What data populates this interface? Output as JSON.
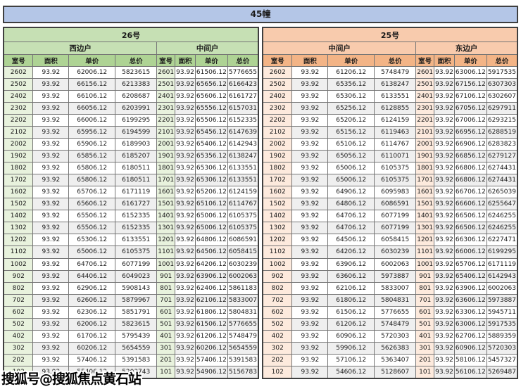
{
  "title": "45幢",
  "watermark": {
    "text": "搜狐号@搜狐焦点黄石站"
  },
  "columns": [
    "室号",
    "面积",
    "单价",
    "总价"
  ],
  "colors": {
    "banner_bg": "#b4c6e7",
    "green": {
      "sec_bg": "#c6e0b4",
      "hdr_bg": "#aed394",
      "room_bg": "#e8f2dd"
    },
    "orange": {
      "sec_bg": "#f8cbad",
      "hdr_bg": "#f3b486",
      "room_bg": "#fdeadd"
    }
  },
  "sections": [
    {
      "label": "26号",
      "theme": "green",
      "groups": [
        {
          "label": "西边户",
          "rows": [
            [
              "2602",
              "93.92",
              "62006.12",
              "5823615"
            ],
            [
              "2502",
              "93.92",
              "66156.12",
              "6213383"
            ],
            [
              "2402",
              "93.92",
              "66106.12",
              "6208687"
            ],
            [
              "2302",
              "93.92",
              "66056.12",
              "6203991"
            ],
            [
              "2202",
              "93.92",
              "66006.12",
              "6199295"
            ],
            [
              "2102",
              "93.92",
              "65956.12",
              "6194599"
            ],
            [
              "2002",
              "93.92",
              "65906.12",
              "6189903"
            ],
            [
              "1902",
              "93.92",
              "65856.12",
              "6185207"
            ],
            [
              "1802",
              "93.92",
              "65806.12",
              "6180511"
            ],
            [
              "1702",
              "93.92",
              "65806.12",
              "6180511"
            ],
            [
              "1602",
              "93.92",
              "65706.12",
              "6171119"
            ],
            [
              "1502",
              "93.92",
              "65606.12",
              "6161727"
            ],
            [
              "1402",
              "93.92",
              "65506.12",
              "6152335"
            ],
            [
              "1302",
              "93.92",
              "65506.12",
              "6152335"
            ],
            [
              "1202",
              "93.92",
              "65306.12",
              "6133551"
            ],
            [
              "1102",
              "93.92",
              "65006.12",
              "6105375"
            ],
            [
              "1002",
              "93.92",
              "64706.12",
              "6077199"
            ],
            [
              "902",
              "93.92",
              "64406.12",
              "6049023"
            ],
            [
              "802",
              "93.92",
              "62906.12",
              "5908143"
            ],
            [
              "702",
              "93.92",
              "62606.12",
              "5879967"
            ],
            [
              "602",
              "93.92",
              "62306.12",
              "5851791"
            ],
            [
              "502",
              "93.92",
              "62006.12",
              "5823615"
            ],
            [
              "402",
              "93.92",
              "61706.12",
              "5795439"
            ],
            [
              "302",
              "93.92",
              "60206.12",
              "5654559"
            ],
            [
              "202",
              "93.92",
              "57406.12",
              "5391583"
            ],
            [
              "102",
              "93.92",
              "55406.12",
              "5203743"
            ]
          ]
        },
        {
          "label": "中间户",
          "rows": [
            [
              "2601",
              "93.92",
              "61506.12",
              "5776655"
            ],
            [
              "2501",
              "93.92",
              "65656.12",
              "6166423"
            ],
            [
              "2401",
              "93.92",
              "65606.12",
              "6161727"
            ],
            [
              "2301",
              "93.92",
              "65556.12",
              "6157031"
            ],
            [
              "2201",
              "93.92",
              "65506.12",
              "6152335"
            ],
            [
              "2101",
              "93.92",
              "65456.12",
              "6147639"
            ],
            [
              "2001",
              "93.92",
              "65406.12",
              "6142943"
            ],
            [
              "1901",
              "93.92",
              "65356.12",
              "6138247"
            ],
            [
              "1801",
              "93.92",
              "65306.12",
              "6133551"
            ],
            [
              "1701",
              "93.92",
              "65306.12",
              "6133551"
            ],
            [
              "1601",
              "93.92",
              "65206.12",
              "6124159"
            ],
            [
              "1501",
              "93.92",
              "65106.12",
              "6114767"
            ],
            [
              "1401",
              "93.92",
              "65006.12",
              "6105375"
            ],
            [
              "1301",
              "93.92",
              "65006.12",
              "6105375"
            ],
            [
              "1201",
              "93.92",
              "64806.12",
              "6086591"
            ],
            [
              "1101",
              "93.92",
              "64506.12",
              "6058415"
            ],
            [
              "1001",
              "93.92",
              "64206.12",
              "6030239"
            ],
            [
              "901",
              "93.92",
              "63906.12",
              "6002063"
            ],
            [
              "801",
              "93.92",
              "62406.12",
              "5861183"
            ],
            [
              "701",
              "93.92",
              "62106.12",
              "5833007"
            ],
            [
              "601",
              "93.92",
              "61806.12",
              "5804831"
            ],
            [
              "501",
              "93.92",
              "61506.12",
              "5776655"
            ],
            [
              "401",
              "93.92",
              "61206.12",
              "5748479"
            ],
            [
              "301",
              "93.92",
              "60206.12",
              "5654559"
            ],
            [
              "201",
              "93.92",
              "57406.12",
              "5391583"
            ],
            [
              "101",
              "93.92",
              "54906.12",
              "5156783"
            ]
          ]
        }
      ]
    },
    {
      "label": "25号",
      "theme": "orange",
      "groups": [
        {
          "label": "中间户",
          "rows": [
            [
              "2602",
              "93.92",
              "61206.12",
              "5748479"
            ],
            [
              "2502",
              "93.92",
              "65356.12",
              "6138247"
            ],
            [
              "2402",
              "93.92",
              "65306.12",
              "6133551"
            ],
            [
              "2302",
              "93.92",
              "65256.12",
              "6128855"
            ],
            [
              "2202",
              "93.92",
              "65206.12",
              "6124159"
            ],
            [
              "2102",
              "93.92",
              "65156.12",
              "6119463"
            ],
            [
              "2002",
              "93.92",
              "65106.12",
              "6114767"
            ],
            [
              "1902",
              "93.92",
              "65056.12",
              "6110071"
            ],
            [
              "1802",
              "93.92",
              "65006.12",
              "6105375"
            ],
            [
              "1702",
              "93.92",
              "65006.12",
              "6105375"
            ],
            [
              "1602",
              "93.92",
              "64906.12",
              "6095983"
            ],
            [
              "1502",
              "93.92",
              "64806.12",
              "6086591"
            ],
            [
              "1402",
              "93.92",
              "64706.12",
              "6077199"
            ],
            [
              "1302",
              "93.92",
              "64706.12",
              "6077199"
            ],
            [
              "1202",
              "93.92",
              "64506.12",
              "6058415"
            ],
            [
              "1102",
              "93.92",
              "64206.12",
              "6030239"
            ],
            [
              "1002",
              "93.92",
              "63906.12",
              "6002063"
            ],
            [
              "902",
              "93.92",
              "63606.12",
              "5973887"
            ],
            [
              "802",
              "93.92",
              "62106.12",
              "5833007"
            ],
            [
              "702",
              "93.92",
              "61806.12",
              "5804831"
            ],
            [
              "602",
              "93.92",
              "61506.12",
              "5776655"
            ],
            [
              "502",
              "93.92",
              "61206.12",
              "5748479"
            ],
            [
              "402",
              "93.92",
              "60906.12",
              "5720303"
            ],
            [
              "302",
              "93.92",
              "59906.12",
              "5626383"
            ],
            [
              "202",
              "93.92",
              "57106.12",
              "5363407"
            ],
            [
              "102",
              "93.92",
              "54606.12",
              "5128607"
            ]
          ]
        },
        {
          "label": "东边户",
          "rows": [
            [
              "2601",
              "93.92",
              "63006.12",
              "5917535"
            ],
            [
              "2501",
              "93.92",
              "67156.12",
              "6307303"
            ],
            [
              "2401",
              "93.92",
              "67106.12",
              "6302607"
            ],
            [
              "2301",
              "93.92",
              "67056.12",
              "6297911"
            ],
            [
              "2201",
              "93.92",
              "67006.12",
              "6293215"
            ],
            [
              "2101",
              "93.92",
              "66956.12",
              "6288519"
            ],
            [
              "2001",
              "93.92",
              "66906.12",
              "6283823"
            ],
            [
              "1901",
              "93.92",
              "66856.12",
              "6279127"
            ],
            [
              "1801",
              "93.92",
              "66806.12",
              "6274431"
            ],
            [
              "1701",
              "93.92",
              "66806.12",
              "6274431"
            ],
            [
              "1601",
              "93.92",
              "66706.12",
              "6265039"
            ],
            [
              "1501",
              "93.92",
              "66606.12",
              "6255647"
            ],
            [
              "1401",
              "93.92",
              "66506.12",
              "6246255"
            ],
            [
              "1301",
              "93.92",
              "66506.12",
              "6246255"
            ],
            [
              "1201",
              "93.92",
              "66306.12",
              "6227471"
            ],
            [
              "1101",
              "93.92",
              "66006.12",
              "6199295"
            ],
            [
              "1001",
              "93.92",
              "65706.12",
              "6171119"
            ],
            [
              "901",
              "93.92",
              "65406.12",
              "6142943"
            ],
            [
              "801",
              "93.92",
              "63906.12",
              "6002063"
            ],
            [
              "701",
              "93.92",
              "63606.12",
              "5973887"
            ],
            [
              "601",
              "93.92",
              "63306.12",
              "5945711"
            ],
            [
              "501",
              "93.92",
              "63006.12",
              "5917535"
            ],
            [
              "401",
              "93.92",
              "62706.12",
              "5889359"
            ],
            [
              "301",
              "93.92",
              "60906.12",
              "5720303"
            ],
            [
              "201",
              "93.92",
              "58106.12",
              "5457327"
            ],
            [
              "101",
              "93.92",
              "56106.12",
              "5269487"
            ]
          ]
        }
      ]
    }
  ]
}
